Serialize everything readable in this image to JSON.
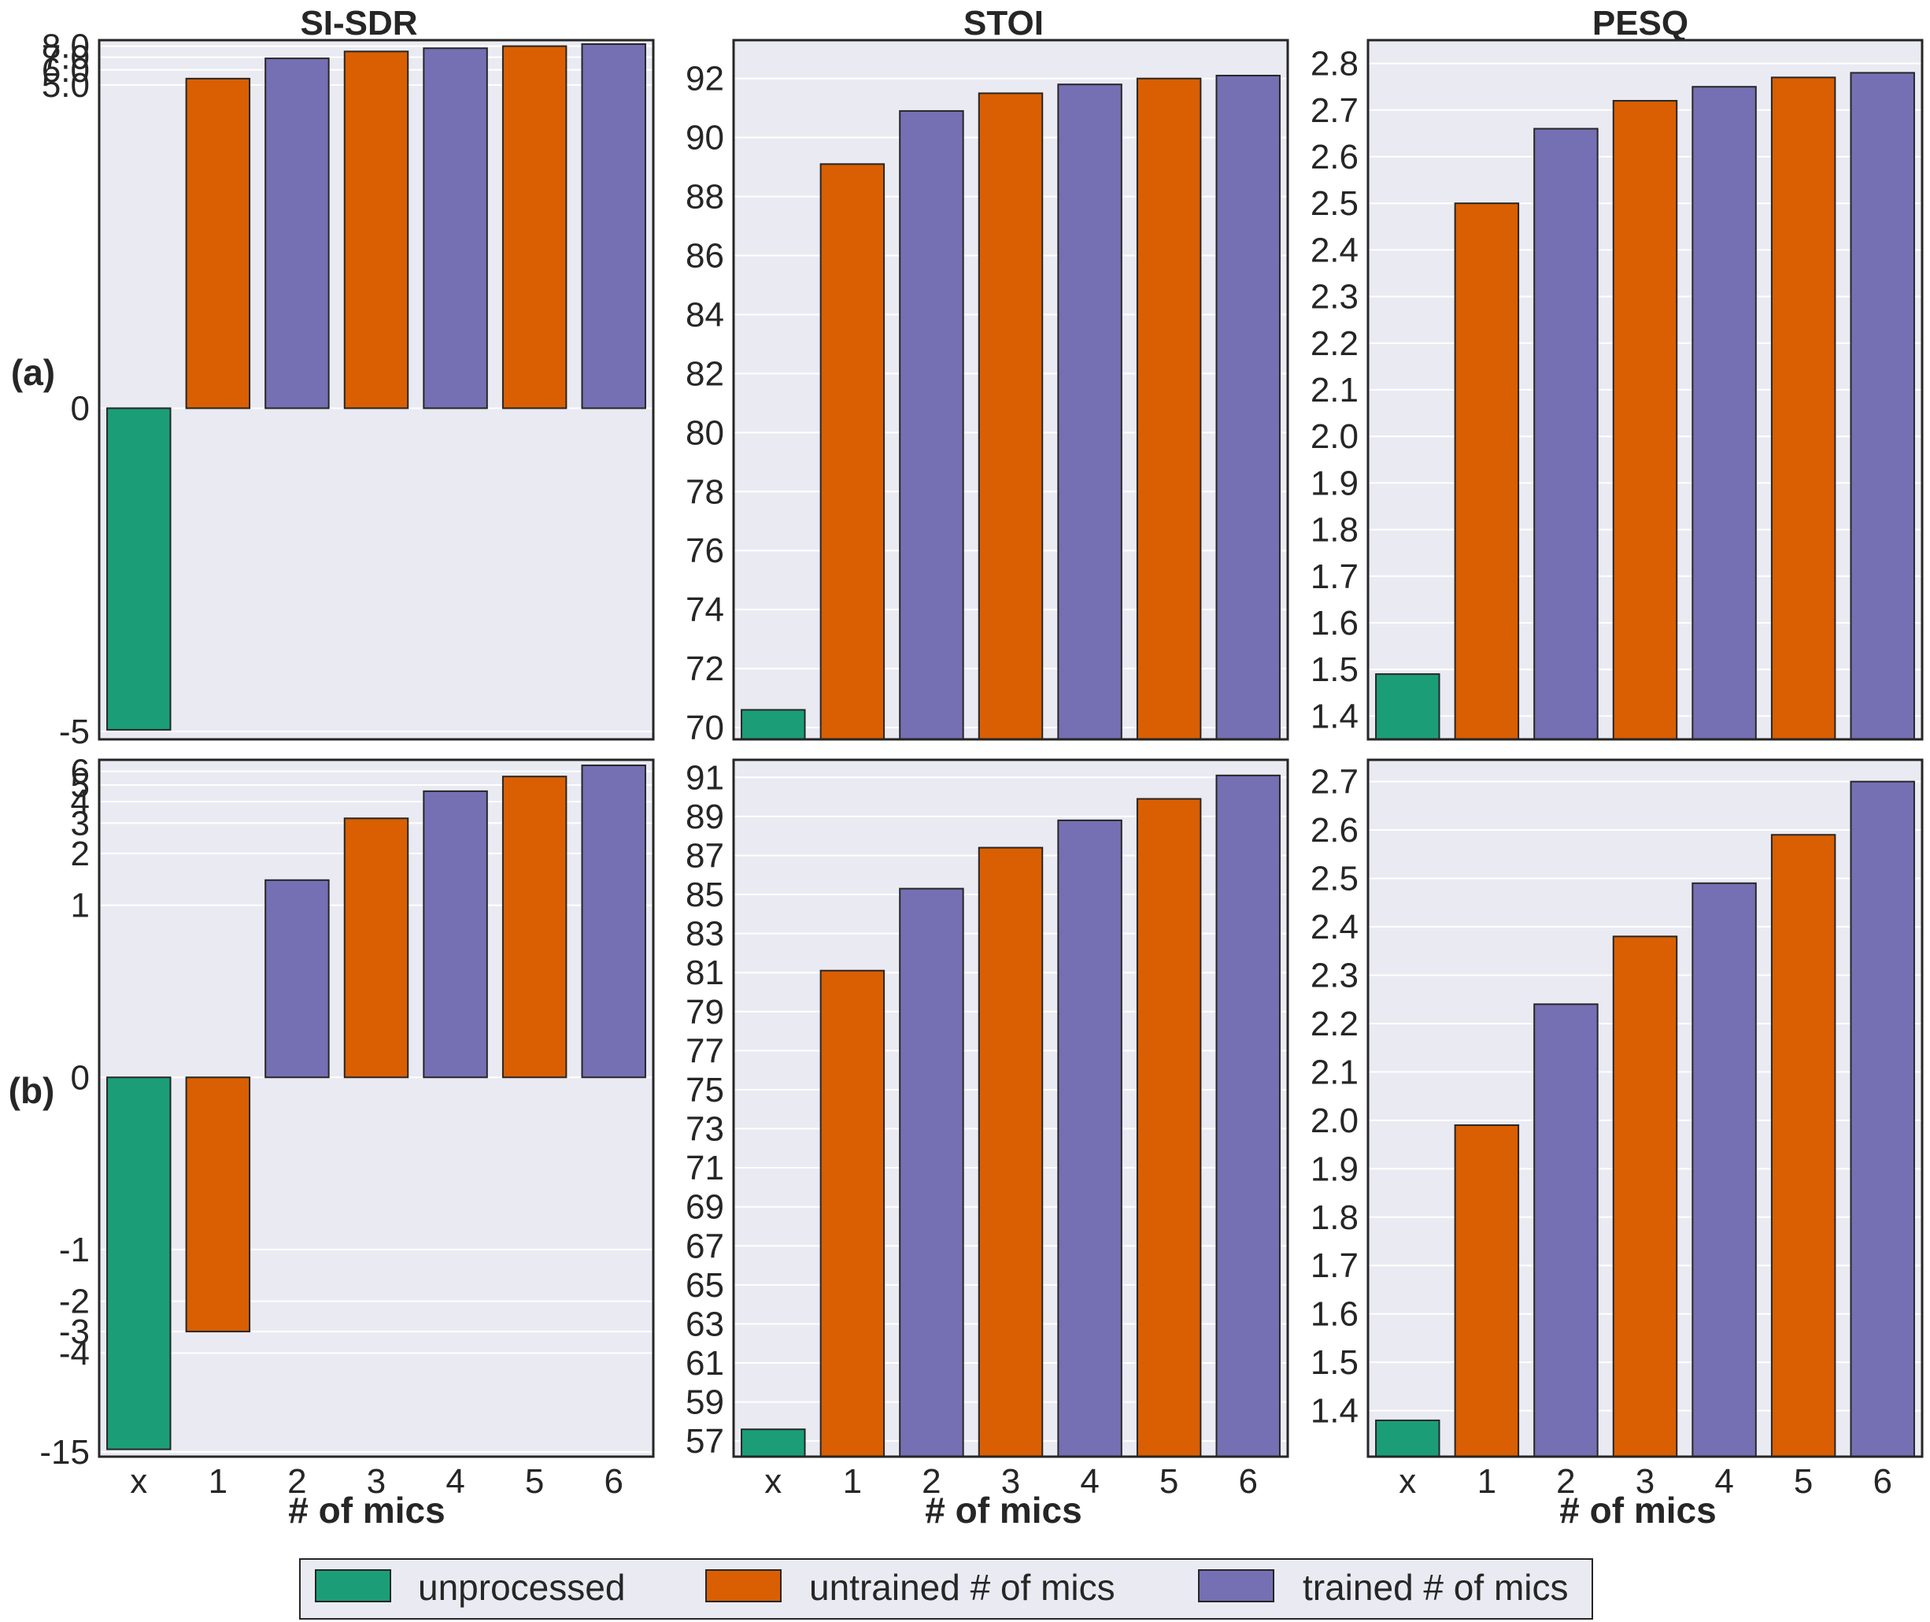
{
  "column_titles": [
    "SI-SDR",
    "STOI",
    "PESQ"
  ],
  "row_labels": [
    "(a)",
    "(b)"
  ],
  "xlabel": "# of mics",
  "legend": [
    {
      "label": "unprocessed",
      "color": "#1b9e77"
    },
    {
      "label": "untrained # of mics",
      "color": "#d95f02"
    },
    {
      "label": "trained # of mics",
      "color": "#7570b3"
    }
  ],
  "colors": {
    "unprocessed": "#1b9e77",
    "untrained": "#d95f02",
    "trained": "#7570b3",
    "axes_bg": "#eaeaf2",
    "grid": "#ffffff",
    "edge": "#262626"
  },
  "chart_data": [
    {
      "type": "bar",
      "row": "(a)",
      "metric": "SI-SDR",
      "title": "SI-SDR",
      "xlabel": "",
      "categories": [
        "x",
        "1",
        "2",
        "3",
        "4",
        "5",
        "6"
      ],
      "values": [
        -4.9,
        5.4,
        6.9,
        7.5,
        7.8,
        8.0,
        8.2
      ],
      "bar_groups": [
        "unprocessed",
        "untrained",
        "trained",
        "untrained",
        "trained",
        "untrained",
        "trained"
      ],
      "yscale": "symlog",
      "ylim": [
        -5.5,
        8.6
      ],
      "yticks": [
        -5,
        0,
        5,
        6,
        7,
        8
      ],
      "ytick_labels": [
        "-5",
        "0",
        "5.0",
        "6.0",
        "7.0",
        "8.0"
      ]
    },
    {
      "type": "bar",
      "row": "(a)",
      "metric": "STOI",
      "title": "STOI",
      "xlabel": "",
      "categories": [
        "x",
        "1",
        "2",
        "3",
        "4",
        "5",
        "6"
      ],
      "values": [
        70.6,
        89.1,
        90.9,
        91.5,
        91.8,
        92.0,
        92.1
      ],
      "bar_groups": [
        "unprocessed",
        "untrained",
        "trained",
        "untrained",
        "trained",
        "untrained",
        "trained"
      ],
      "yscale": "linear",
      "ylim": [
        69.6,
        93.3
      ],
      "yticks": [
        70,
        72,
        74,
        76,
        78,
        80,
        82,
        84,
        86,
        88,
        90,
        92
      ],
      "ytick_labels": [
        "70",
        "72",
        "74",
        "76",
        "78",
        "80",
        "82",
        "84",
        "86",
        "88",
        "90",
        "92"
      ]
    },
    {
      "type": "bar",
      "row": "(a)",
      "metric": "PESQ",
      "title": "PESQ",
      "xlabel": "",
      "categories": [
        "x",
        "1",
        "2",
        "3",
        "4",
        "5",
        "6"
      ],
      "values": [
        1.49,
        2.5,
        2.66,
        2.72,
        2.75,
        2.77,
        2.78
      ],
      "bar_groups": [
        "unprocessed",
        "untrained",
        "trained",
        "untrained",
        "trained",
        "untrained",
        "trained"
      ],
      "yscale": "linear",
      "ylim": [
        1.35,
        2.85
      ],
      "yticks": [
        1.4,
        1.5,
        1.6,
        1.7,
        1.8,
        1.9,
        2.0,
        2.1,
        2.2,
        2.3,
        2.4,
        2.5,
        2.6,
        2.7,
        2.8
      ],
      "ytick_labels": [
        "1.4",
        "1.5",
        "1.6",
        "1.7",
        "1.8",
        "1.9",
        "2.0",
        "2.1",
        "2.2",
        "2.3",
        "2.4",
        "2.5",
        "2.6",
        "2.7",
        "2.8"
      ]
    },
    {
      "type": "bar",
      "row": "(b)",
      "metric": "SI-SDR",
      "title": "",
      "xlabel": "# of mics",
      "categories": [
        "x",
        "1",
        "2",
        "3",
        "4",
        "5",
        "6"
      ],
      "values": [
        -14.5,
        -3.0,
        1.4,
        3.2,
        4.6,
        5.6,
        6.5
      ],
      "bar_groups": [
        "unprocessed",
        "untrained",
        "trained",
        "untrained",
        "trained",
        "untrained",
        "trained"
      ],
      "yscale": "symlog",
      "ylim": [
        -16,
        7
      ],
      "yticks": [
        -15,
        -4,
        -3,
        -2,
        -1,
        0,
        1,
        2,
        3,
        4,
        5,
        6
      ],
      "ytick_labels": [
        "-15",
        "-4",
        "-3",
        "-2",
        "-1",
        "0",
        "1",
        "2",
        "3",
        "4",
        "5",
        "6"
      ]
    },
    {
      "type": "bar",
      "row": "(b)",
      "metric": "STOI",
      "title": "",
      "xlabel": "# of mics",
      "categories": [
        "x",
        "1",
        "2",
        "3",
        "4",
        "5",
        "6"
      ],
      "values": [
        57.6,
        81.1,
        85.3,
        87.4,
        88.8,
        89.9,
        91.1
      ],
      "bar_groups": [
        "unprocessed",
        "untrained",
        "trained",
        "untrained",
        "trained",
        "untrained",
        "trained"
      ],
      "yscale": "linear",
      "ylim": [
        56.2,
        91.9
      ],
      "yticks": [
        57,
        59,
        61,
        63,
        65,
        67,
        69,
        71,
        73,
        75,
        77,
        79,
        81,
        83,
        85,
        87,
        89,
        91
      ],
      "ytick_labels": [
        "57",
        "59",
        "61",
        "63",
        "65",
        "67",
        "69",
        "71",
        "73",
        "75",
        "77",
        "79",
        "81",
        "83",
        "85",
        "87",
        "89",
        "91"
      ]
    },
    {
      "type": "bar",
      "row": "(b)",
      "metric": "PESQ",
      "title": "",
      "xlabel": "# of mics",
      "categories": [
        "x",
        "1",
        "2",
        "3",
        "4",
        "5",
        "6"
      ],
      "values": [
        1.38,
        1.99,
        2.24,
        2.38,
        2.49,
        2.59,
        2.7
      ],
      "bar_groups": [
        "unprocessed",
        "untrained",
        "trained",
        "untrained",
        "trained",
        "untrained",
        "trained"
      ],
      "yscale": "linear",
      "ylim": [
        1.305,
        2.745
      ],
      "yticks": [
        1.4,
        1.5,
        1.6,
        1.7,
        1.8,
        1.9,
        2.0,
        2.1,
        2.2,
        2.3,
        2.4,
        2.5,
        2.6,
        2.7
      ],
      "ytick_labels": [
        "1.4",
        "1.5",
        "1.6",
        "1.7",
        "1.8",
        "1.9",
        "2.0",
        "2.1",
        "2.2",
        "2.3",
        "2.4",
        "2.5",
        "2.6",
        "2.7"
      ]
    }
  ]
}
